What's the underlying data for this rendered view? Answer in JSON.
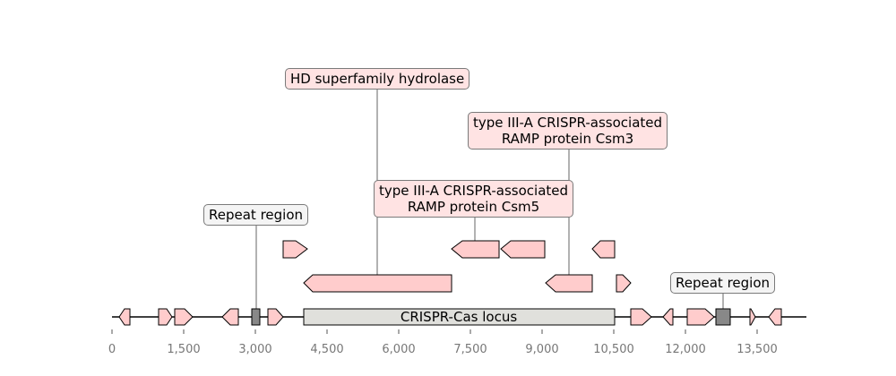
{
  "axis": {
    "ticks": [
      0,
      1500,
      3000,
      4500,
      6000,
      7500,
      9000,
      10500,
      12000,
      13500
    ],
    "tick_labels": [
      "0",
      "1,500",
      "3,000",
      "4,500",
      "6,000",
      "7,500",
      "9,000",
      "10,500",
      "12,000",
      "13,500"
    ]
  },
  "locus_label": "CRISPR-Cas locus",
  "colors": {
    "gene": "#ffcccc",
    "repeat": "#888888",
    "locus": "#e0e0dc"
  },
  "callouts": {
    "hd": "HD superfamily hydrolase",
    "csm3": [
      "type III-A CRISPR-associated",
      "RAMP protein Csm3"
    ],
    "csm5": [
      "type III-A CRISPR-associated",
      "RAMP protein Csm5"
    ],
    "repeat_left": "Repeat region",
    "repeat_right": "Repeat region"
  }
}
